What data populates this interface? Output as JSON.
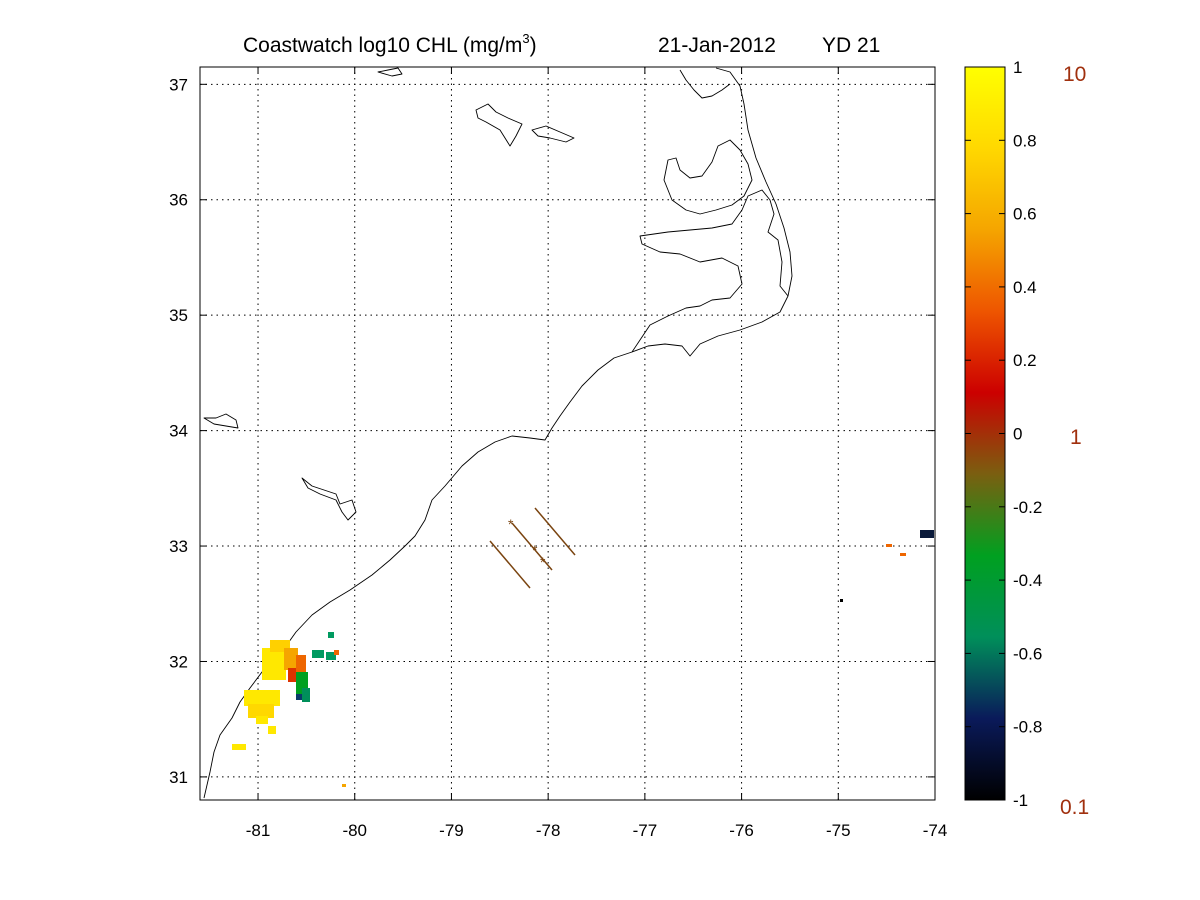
{
  "title": {
    "main": "Coastwatch  log10  CHL (mg/m",
    "superscript": "3",
    "close": ")",
    "date": "21-Jan-2012",
    "yearday": "YD 21"
  },
  "map": {
    "lon_range": [
      -81.6,
      -74
    ],
    "lat_range": [
      30.8,
      37.15
    ],
    "lon_ticks": [
      -81,
      -80,
      -79,
      -78,
      -77,
      -76,
      -75,
      -74
    ],
    "lat_ticks": [
      31,
      32,
      33,
      34,
      35,
      36,
      37
    ],
    "lon_tick_labels": [
      "-81",
      "-80",
      "-79",
      "-78",
      "-77",
      "-76",
      "-75",
      "-74"
    ],
    "lat_tick_labels": [
      "31",
      "32",
      "33",
      "34",
      "35",
      "36",
      "37"
    ],
    "grid": true
  },
  "colorbar": {
    "range": [
      -1,
      1
    ],
    "tick_labels": [
      "1",
      "0.8",
      "0.6",
      "0.4",
      "0.2",
      "0",
      "-0.2",
      "-0.4",
      "-0.6",
      "-0.8",
      "-1"
    ],
    "reference_labels": [
      "10",
      "1",
      "0.1"
    ],
    "reference_color": "#a0300e",
    "colors": [
      "#000000",
      "#0a1a5a",
      "#008f5a",
      "#00a020",
      "#7a5f10",
      "#cc0000",
      "#ee5500",
      "#f5a500",
      "#ffd800",
      "#ffff00"
    ]
  },
  "tracks_color": "#7a4410"
}
